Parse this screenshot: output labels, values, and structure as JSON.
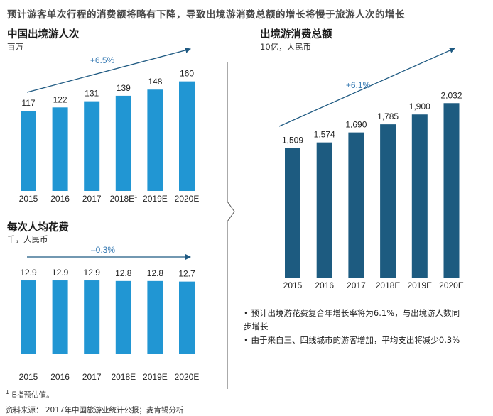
{
  "headline": "预计游客单次行程的消费额将略有下降，导致出境游消费总额的增长将慢于旅游人次的增长",
  "colors": {
    "bar_light": "#2196d3",
    "bar_dark": "#1d5b80",
    "arrow": "#1f5a82",
    "rate_text": "#3a7cb4",
    "divider": "#555555"
  },
  "chart_data": [
    {
      "id": "trips",
      "type": "bar",
      "title": "中国出境游人次",
      "unit": "百万",
      "categories": [
        "2015",
        "2016",
        "2017",
        "2018E",
        "2019E",
        "2020E"
      ],
      "category_superscripts": [
        "",
        "",
        "",
        "1",
        "",
        ""
      ],
      "values": [
        117,
        122,
        131,
        139,
        148,
        160
      ],
      "value_labels": [
        "117",
        "122",
        "131",
        "139",
        "148",
        "160"
      ],
      "growth_label": "+6.5%",
      "ylim": [
        0,
        170
      ]
    },
    {
      "id": "per_trip",
      "type": "bar",
      "title": "每次人均花费",
      "unit": "千，人民币",
      "categories": [
        "2015",
        "2016",
        "2017",
        "2018E",
        "2019E",
        "2020E"
      ],
      "values": [
        12.9,
        12.9,
        12.9,
        12.8,
        12.8,
        12.7
      ],
      "value_labels": [
        "12.9",
        "12.9",
        "12.9",
        "12.8",
        "12.8",
        "12.7"
      ],
      "growth_label": "–0.3%",
      "ylim": [
        0,
        13.4
      ]
    },
    {
      "id": "spend",
      "type": "bar",
      "title": "出境游消费总额",
      "unit": "10亿，人民币",
      "categories": [
        "2015",
        "2016",
        "2017",
        "2018E",
        "2019E",
        "2020E"
      ],
      "values": [
        1509,
        1574,
        1690,
        1785,
        1900,
        2032
      ],
      "value_labels": [
        "1,509",
        "1,574",
        "1,690",
        "1,785",
        "1,900",
        "2,032"
      ],
      "growth_label": "+6.1%",
      "ylim": [
        0,
        2150
      ]
    }
  ],
  "notes": [
    "• 预计出境游花费复合年增长率将为6.1%，与出境游人数同",
    "   步增长",
    "• 由于来自三、四线城市的游客增加，平均支出将减少0.3%"
  ],
  "footnote_marker": "1",
  "footnote_text": "E指预估值。",
  "source": "资料来源： 2017年中国旅游业统计公报；麦肯锡分析"
}
